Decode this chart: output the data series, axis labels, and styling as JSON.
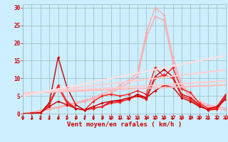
{
  "x": [
    0,
    1,
    2,
    3,
    4,
    5,
    6,
    7,
    8,
    9,
    10,
    11,
    12,
    13,
    14,
    15,
    16,
    17,
    18,
    19,
    20,
    21,
    22,
    23
  ],
  "series": [
    {
      "name": "line_pale1",
      "color": "#ffaaaa",
      "linewidth": 1.0,
      "marker": "D",
      "markersize": 1.8,
      "y": [
        0.0,
        0.4,
        0.9,
        1.4,
        1.9,
        2.5,
        3.1,
        3.8,
        4.6,
        5.5,
        6.5,
        8.0,
        9.5,
        11.5,
        23.0,
        30.0,
        28.0,
        16.0,
        8.5,
        5.0,
        3.5,
        2.5,
        2.0,
        1.5
      ]
    },
    {
      "name": "line_pale2",
      "color": "#ffaaaa",
      "linewidth": 1.0,
      "marker": "D",
      "markersize": 1.8,
      "y": [
        0.0,
        0.3,
        0.7,
        1.2,
        1.7,
        2.2,
        2.8,
        3.4,
        4.2,
        5.0,
        5.8,
        7.2,
        8.8,
        10.5,
        21.5,
        27.5,
        26.5,
        14.5,
        7.5,
        4.5,
        3.0,
        2.0,
        1.5,
        1.0
      ]
    },
    {
      "name": "line_red1",
      "color": "#ff2222",
      "linewidth": 1.0,
      "marker": "D",
      "markersize": 1.8,
      "y": [
        0.0,
        0.1,
        0.2,
        3.0,
        8.0,
        3.5,
        1.5,
        1.0,
        3.5,
        5.0,
        5.5,
        5.0,
        5.5,
        6.5,
        5.5,
        13.0,
        10.5,
        13.0,
        7.0,
        6.0,
        3.0,
        1.5,
        2.0,
        5.5
      ]
    },
    {
      "name": "line_darkred1",
      "color": "#cc0000",
      "linewidth": 1.0,
      "marker": "D",
      "markersize": 1.8,
      "y": [
        0.0,
        0.1,
        0.2,
        3.0,
        16.0,
        7.5,
        2.5,
        1.0,
        1.5,
        2.0,
        3.5,
        3.5,
        4.0,
        5.5,
        4.5,
        10.5,
        12.5,
        10.5,
        5.5,
        4.5,
        2.5,
        1.0,
        1.5,
        5.0
      ]
    },
    {
      "name": "line_red2",
      "color": "#ff2222",
      "linewidth": 1.0,
      "marker": "D",
      "markersize": 1.8,
      "y": [
        0.0,
        0.1,
        0.2,
        2.5,
        7.5,
        3.0,
        1.5,
        1.0,
        1.5,
        2.0,
        3.0,
        3.2,
        4.2,
        5.0,
        4.0,
        10.0,
        11.0,
        10.0,
        5.0,
        4.0,
        2.2,
        1.0,
        1.2,
        4.5
      ]
    },
    {
      "name": "line_darkred2",
      "color": "#cc0000",
      "linewidth": 1.0,
      "marker": "D",
      "markersize": 1.8,
      "y": [
        0.0,
        0.1,
        0.2,
        2.0,
        3.5,
        2.5,
        1.5,
        1.0,
        2.0,
        3.0,
        3.5,
        3.8,
        4.5,
        5.0,
        4.5,
        6.5,
        8.0,
        7.5,
        4.5,
        3.5,
        2.0,
        1.2,
        2.0,
        4.0
      ]
    },
    {
      "name": "linear_pale1",
      "color": "#ffbbbb",
      "linewidth": 1.5,
      "marker": null,
      "y": [
        5.8,
        5.9,
        6.0,
        6.1,
        6.2,
        6.3,
        6.4,
        6.5,
        6.6,
        6.7,
        6.8,
        6.9,
        7.0,
        7.1,
        7.2,
        7.3,
        7.4,
        7.5,
        7.6,
        7.7,
        7.8,
        7.9,
        8.0,
        8.1
      ]
    },
    {
      "name": "linear_pale2",
      "color": "#ffcccc",
      "linewidth": 1.5,
      "marker": null,
      "y": [
        5.8,
        5.95,
        6.1,
        6.25,
        6.4,
        6.55,
        6.7,
        6.85,
        7.0,
        7.15,
        7.3,
        7.45,
        7.6,
        7.75,
        7.9,
        8.05,
        8.2,
        8.35,
        8.5,
        8.65,
        8.8,
        8.95,
        9.1,
        9.25
      ]
    },
    {
      "name": "linear_pale3",
      "color": "#ffd0d0",
      "linewidth": 1.5,
      "marker": null,
      "y": [
        5.5,
        5.8,
        6.1,
        6.4,
        6.7,
        7.0,
        7.3,
        7.6,
        7.9,
        8.2,
        8.5,
        8.8,
        9.1,
        9.4,
        9.7,
        10.0,
        10.3,
        10.6,
        10.9,
        11.2,
        11.5,
        11.8,
        12.1,
        12.4
      ]
    },
    {
      "name": "linear_pale4",
      "color": "#ffe0e0",
      "linewidth": 1.5,
      "marker": null,
      "y": [
        5.0,
        5.5,
        6.0,
        6.5,
        7.0,
        7.5,
        8.0,
        8.5,
        9.0,
        9.5,
        10.0,
        10.5,
        11.0,
        11.5,
        12.0,
        12.5,
        13.0,
        13.5,
        14.0,
        14.5,
        15.0,
        15.5,
        16.0,
        16.5
      ]
    }
  ],
  "xlabel": "Vent moyen/en rafales ( km/h )",
  "xlim": [
    0,
    23
  ],
  "ylim": [
    0,
    31
  ],
  "yticks": [
    0,
    5,
    10,
    15,
    20,
    25,
    30
  ],
  "xticks": [
    0,
    1,
    2,
    3,
    4,
    5,
    6,
    7,
    8,
    9,
    10,
    11,
    12,
    13,
    14,
    15,
    16,
    17,
    18,
    19,
    20,
    21,
    22,
    23
  ],
  "bg_color": "#cceeff",
  "grid_color": "#99bbbb",
  "xlabel_color": "#cc0000",
  "tick_color": "#cc0000",
  "tick_fontsize": 5.0,
  "xlabel_fontsize": 6.5
}
